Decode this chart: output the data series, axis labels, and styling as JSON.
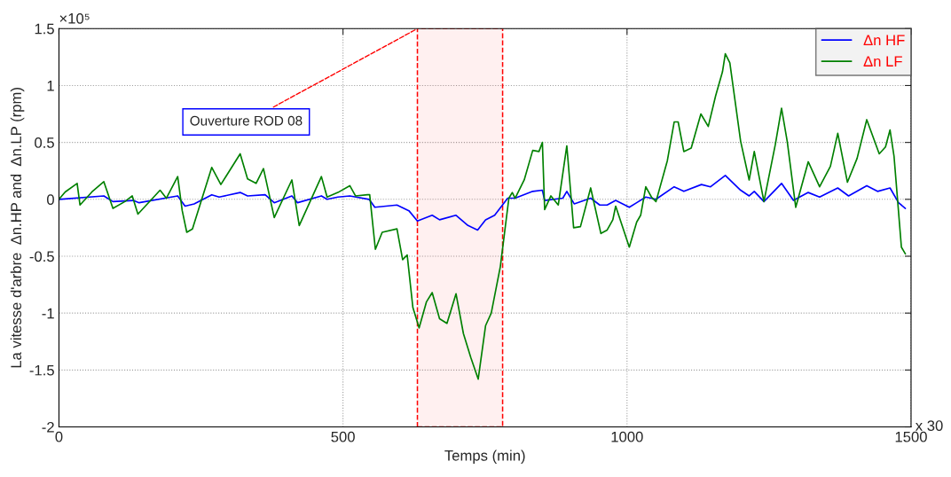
{
  "chart_data": {
    "type": "line",
    "xlabel": "Temps (min)",
    "ylabel": "La vitesse d'arbre  Δn.HP and  Δn.LP (rpm)",
    "xlim": [
      0,
      1500
    ],
    "xticks": [
      0,
      500,
      1000,
      1500
    ],
    "ylim": [
      -2,
      1.5
    ],
    "yticks": [
      -2,
      -1.5,
      -1,
      -0.5,
      0,
      0.5,
      1,
      1.5
    ],
    "grid": true,
    "legend": "top right",
    "line_style": "solid",
    "marker": "none",
    "annotations": [
      "×10⁵",
      "x 30"
    ],
    "bands": [
      {
        "axis": "x",
        "from": 631,
        "to": 781,
        "color": "#ff0000",
        "label": "Ouverture ROD 08"
      }
    ],
    "series": [
      {
        "name": "Δn HF",
        "color": "#0000ff",
        "x": [
          0,
          79,
          95,
          131,
          141,
          209,
          222,
          238,
          269,
          282,
          319,
          332,
          363,
          379,
          410,
          420,
          462,
          472,
          491,
          512,
          546,
          556,
          595,
          616,
          631,
          657,
          670,
          699,
          720,
          737,
          751,
          767,
          790,
          803,
          834,
          851,
          855,
          887,
          894,
          907,
          936,
          952,
          965,
          980,
          1004,
          1017,
          1033,
          1051,
          1083,
          1100,
          1131,
          1147,
          1173,
          1200,
          1215,
          1224,
          1241,
          1272,
          1293,
          1319,
          1339,
          1371,
          1390,
          1422,
          1441,
          1463,
          1478,
          1490
        ],
        "values": [
          0,
          0.03,
          -0.02,
          -0.01,
          -0.03,
          0.03,
          -0.06,
          -0.04,
          0.04,
          0.02,
          0.06,
          0.03,
          0.04,
          -0.03,
          0.03,
          -0.03,
          0.03,
          0,
          0.02,
          0.03,
          0,
          -0.07,
          -0.05,
          -0.1,
          -0.19,
          -0.14,
          -0.18,
          -0.14,
          -0.23,
          -0.27,
          -0.18,
          -0.14,
          0.01,
          0.01,
          0.07,
          0.08,
          -0.01,
          0.01,
          0.07,
          -0.04,
          0.01,
          -0.05,
          -0.05,
          -0.01,
          -0.07,
          -0.03,
          0.02,
          0,
          0.11,
          0.07,
          0.13,
          0.11,
          0.21,
          0.08,
          0.03,
          0.07,
          -0.02,
          0.14,
          -0.01,
          0.06,
          0.02,
          0.1,
          0.03,
          0.12,
          0.07,
          0.1,
          -0.03,
          -0.08
        ]
      },
      {
        "name": "Δn LF",
        "color": "#008000",
        "x": [
          0,
          11,
          32,
          37,
          58,
          79,
          95,
          116,
          129,
          139,
          178,
          189,
          209,
          217,
          225,
          235,
          269,
          285,
          319,
          332,
          347,
          360,
          379,
          410,
          423,
          462,
          472,
          491,
          512,
          522,
          543,
          547,
          557,
          569,
          595,
          605,
          613,
          623,
          634,
          647,
          657,
          670,
          683,
          699,
          712,
          725,
          738,
          751,
          761,
          777,
          792,
          798,
          803,
          819,
          834,
          845,
          851,
          855,
          866,
          879,
          894,
          906,
          918,
          936,
          954,
          965,
          975,
          980,
          1004,
          1017,
          1024,
          1033,
          1043,
          1051,
          1071,
          1083,
          1090,
          1100,
          1113,
          1130,
          1143,
          1156,
          1168,
          1173,
          1181,
          1200,
          1215,
          1224,
          1241,
          1261,
          1272,
          1282,
          1297,
          1319,
          1339,
          1358,
          1371,
          1388,
          1405,
          1422,
          1444,
          1455,
          1463,
          1470,
          1483,
          1490
        ],
        "values": [
          0,
          0.065,
          0.14,
          -0.05,
          0.065,
          0.155,
          -0.08,
          -0.02,
          0.03,
          -0.13,
          0.08,
          0.01,
          0.2,
          -0.1,
          -0.29,
          -0.26,
          0.28,
          0.13,
          0.4,
          0.18,
          0.14,
          0.27,
          -0.16,
          0.17,
          -0.23,
          0.2,
          0.02,
          0.06,
          0.12,
          0.03,
          0.04,
          0.04,
          -0.44,
          -0.29,
          -0.26,
          -0.53,
          -0.49,
          -0.95,
          -1.13,
          -0.9,
          -0.82,
          -1.05,
          -1.09,
          -0.83,
          -1.18,
          -1.39,
          -1.58,
          -1.11,
          -1.0,
          -0.59,
          0.01,
          0.06,
          0.01,
          0.17,
          0.43,
          0.42,
          0.5,
          -0.09,
          0.03,
          -0.05,
          0.47,
          -0.25,
          -0.24,
          0.1,
          -0.3,
          -0.27,
          -0.18,
          -0.06,
          -0.42,
          -0.2,
          -0.14,
          0.11,
          0.02,
          -0.02,
          0.34,
          0.68,
          0.68,
          0.42,
          0.45,
          0.75,
          0.64,
          0.91,
          1.12,
          1.28,
          1.2,
          0.51,
          0.17,
          0.42,
          -0.02,
          0.48,
          0.8,
          0.51,
          -0.07,
          0.33,
          0.11,
          0.29,
          0.58,
          0.15,
          0.36,
          0.7,
          0.4,
          0.46,
          0.61,
          0.38,
          -0.42,
          -0.48
        ]
      }
    ]
  }
}
